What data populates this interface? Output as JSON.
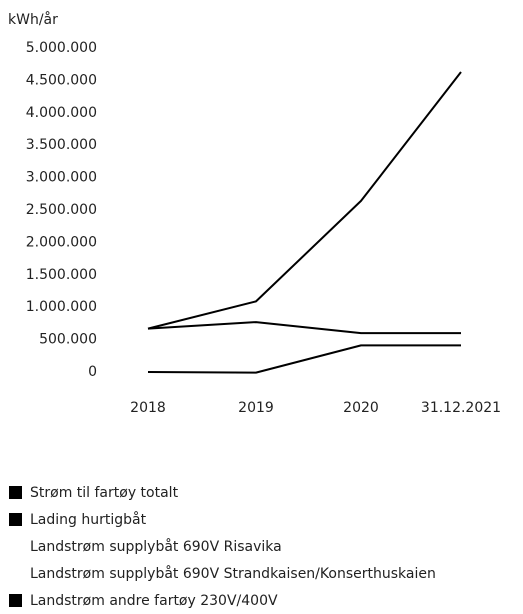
{
  "chart_data": {
    "type": "line",
    "unit_label": "kWh/år",
    "categories": [
      "2018",
      "2019",
      "2020",
      "31.12.2021"
    ],
    "y_ticks": [
      "5.000.000",
      "4.500.000",
      "4.000.000",
      "3.500.000",
      "3.000.000",
      "2.500.000",
      "2.000.000",
      "1.500.000",
      "1.000.000",
      "500.000",
      "0"
    ],
    "ylim": [
      0,
      5000000
    ],
    "grid": false,
    "legend_position": "bottom-left",
    "series": [
      {
        "name": "Strøm til fartøy totalt",
        "values": [
          670000,
          1090000,
          2640000,
          4630000
        ],
        "drawn": true,
        "swatch": true
      },
      {
        "name": "Lading hurtigbåt",
        "values": [
          670000,
          770000,
          600000,
          600000
        ],
        "drawn": true,
        "swatch": true
      },
      {
        "name": "Landstrøm supplybåt 690V Risavika",
        "values": null,
        "drawn": false,
        "swatch": false
      },
      {
        "name": "Landstrøm supplybåt 690V Strandkaisen/Konserthuskaien",
        "values": null,
        "drawn": false,
        "swatch": false
      },
      {
        "name": "Landstrøm andre fartøy 230V/400V",
        "values": [
          0,
          -10000,
          410000,
          410000
        ],
        "drawn": true,
        "swatch": true
      }
    ],
    "colors": {
      "line": "#000000",
      "text": "#222222"
    }
  }
}
